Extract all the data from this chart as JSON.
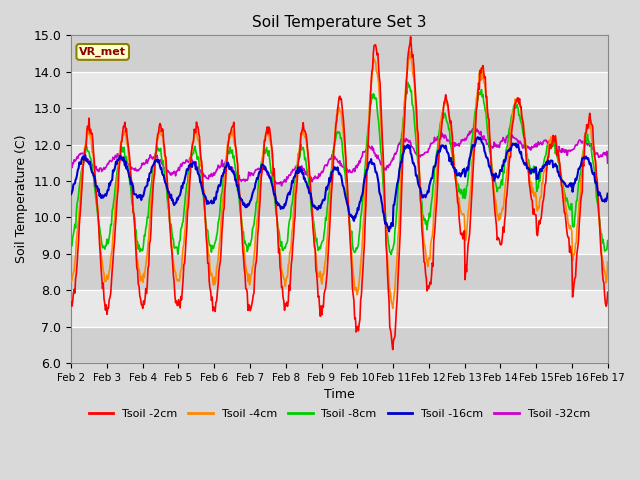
{
  "title": "Soil Temperature Set 3",
  "xlabel": "Time",
  "ylabel": "Soil Temperature (C)",
  "ylim": [
    6.0,
    15.0
  ],
  "yticks": [
    6.0,
    7.0,
    8.0,
    9.0,
    10.0,
    11.0,
    12.0,
    13.0,
    14.0,
    15.0
  ],
  "xtick_labels": [
    "Feb 2",
    "Feb 3",
    "Feb 4",
    "Feb 5",
    "Feb 6",
    "Feb 7",
    "Feb 8",
    "Feb 9",
    "Feb 10",
    "Feb 11",
    "Feb 12",
    "Feb 13",
    "Feb 14",
    "Feb 15",
    "Feb 16",
    "Feb 17"
  ],
  "colors": {
    "Tsoil -2cm": "#ff0000",
    "Tsoil -4cm": "#ff8800",
    "Tsoil -8cm": "#00cc00",
    "Tsoil -16cm": "#0000cc",
    "Tsoil -32cm": "#cc00cc"
  },
  "vr_met_label": "VR_met",
  "fig_width": 6.4,
  "fig_height": 4.8,
  "dpi": 100
}
